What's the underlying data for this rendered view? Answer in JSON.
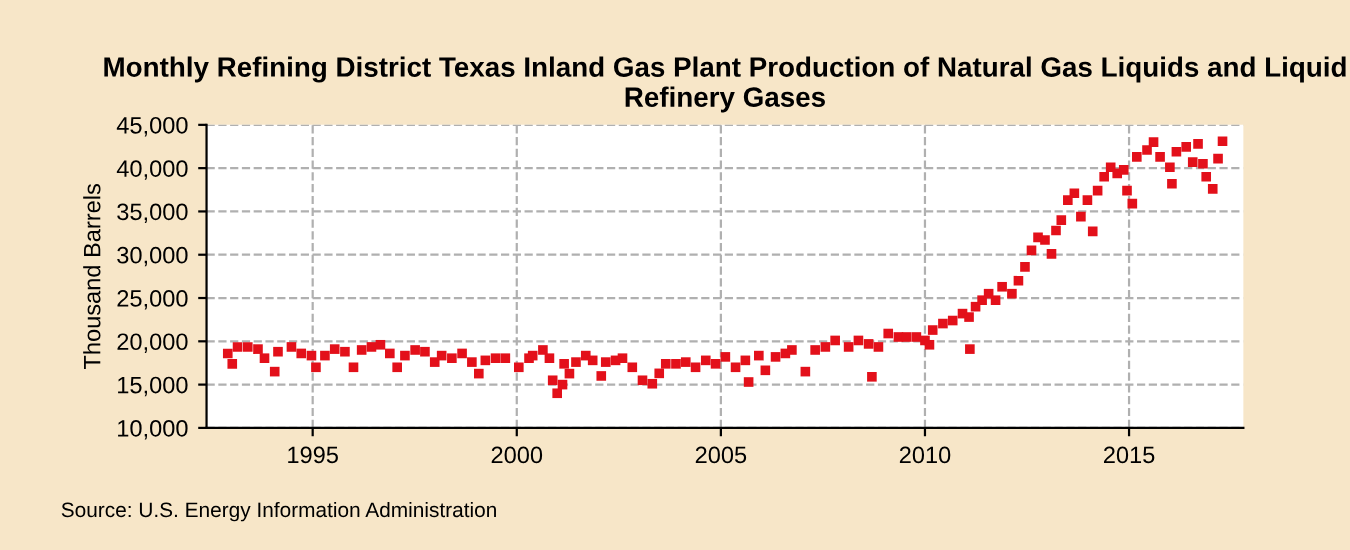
{
  "chart_data": {
    "type": "scatter",
    "title": "Monthly Refining District Texas Inland Gas Plant Production of Natural Gas Liquids and Liquid Refinery Gases",
    "ylabel": "Thousand Barrels",
    "annotations": [
      "Source: U.S. Energy Information Administration"
    ],
    "x": [
      1992.92,
      1993.03,
      1993.16,
      1993.41,
      1993.66,
      1993.82,
      1994.07,
      1994.15,
      1994.48,
      1994.72,
      1994.97,
      1995.08,
      1995.3,
      1995.54,
      1995.79,
      1996.0,
      1996.2,
      1996.44,
      1996.66,
      1996.89,
      1997.07,
      1997.26,
      1997.51,
      1997.75,
      1997.99,
      1998.16,
      1998.41,
      1998.66,
      1998.9,
      1999.07,
      1999.23,
      1999.48,
      1999.72,
      2000.05,
      2000.3,
      2000.39,
      2000.64,
      2000.8,
      2000.88,
      2000.99,
      2001.12,
      2001.16,
      2001.29,
      2001.45,
      2001.69,
      2001.86,
      2002.07,
      2002.18,
      2002.42,
      2002.59,
      2002.83,
      2003.08,
      2003.32,
      2003.49,
      2003.65,
      2003.9,
      2004.14,
      2004.38,
      2004.63,
      2004.87,
      2005.11,
      2005.36,
      2005.6,
      2005.68,
      2005.93,
      2006.09,
      2006.34,
      2006.58,
      2006.74,
      2007.07,
      2007.31,
      2007.56,
      2007.8,
      2008.13,
      2008.37,
      2008.62,
      2008.7,
      2008.86,
      2009.1,
      2009.35,
      2009.55,
      2009.79,
      2010.0,
      2010.11,
      2010.19,
      2010.44,
      2010.68,
      2010.92,
      2011.08,
      2011.1,
      2011.24,
      2011.4,
      2011.56,
      2011.73,
      2011.89,
      2012.13,
      2012.29,
      2012.45,
      2012.61,
      2012.77,
      2012.94,
      2013.1,
      2013.21,
      2013.34,
      2013.5,
      2013.66,
      2013.82,
      2013.98,
      2014.11,
      2014.23,
      2014.39,
      2014.55,
      2014.71,
      2014.87,
      2014.95,
      2015.08,
      2015.19,
      2015.44,
      2015.6,
      2015.76,
      2016.0,
      2016.05,
      2016.16,
      2016.4,
      2016.56,
      2016.69,
      2016.81,
      2016.89,
      2017.05,
      2017.18,
      2017.29
    ],
    "series": [
      {
        "color": "#e3101a",
        "values": [
          18600,
          17400,
          19350,
          19350,
          19100,
          18050,
          16500,
          18800,
          19350,
          18600,
          18350,
          17000,
          18350,
          19100,
          18800,
          17000,
          19000,
          19350,
          19600,
          18600,
          17000,
          18350,
          19000,
          18800,
          17600,
          18350,
          18050,
          18600,
          17600,
          16270,
          17800,
          18050,
          18050,
          17000,
          18050,
          18350,
          19000,
          18050,
          15500,
          14000,
          15000,
          17400,
          16270,
          17600,
          18350,
          17800,
          16000,
          17600,
          17800,
          18050,
          17000,
          15500,
          15100,
          16300,
          17400,
          17400,
          17600,
          17000,
          17800,
          17400,
          18200,
          17000,
          17800,
          15300,
          18350,
          16650,
          18200,
          18600,
          19000,
          16500,
          19000,
          19350,
          20100,
          19350,
          20100,
          19700,
          15900,
          19350,
          20900,
          20500,
          20500,
          20500,
          20100,
          19600,
          21300,
          22050,
          22400,
          23200,
          22800,
          19100,
          24000,
          24750,
          25500,
          24750,
          26300,
          25500,
          27000,
          28600,
          30500,
          32000,
          31700,
          30100,
          32800,
          34000,
          36300,
          37100,
          34400,
          36300,
          32700,
          37400,
          39000,
          40100,
          39400,
          39800,
          37400,
          35900,
          41300,
          42100,
          43000,
          41300,
          40100,
          38200,
          41900,
          42450,
          40700,
          42800,
          40500,
          39000,
          37600,
          41100,
          43100
        ]
      }
    ],
    "marker": "square",
    "xlim": [
      1992.4,
      2017.8
    ],
    "xticks": [
      1995,
      2000,
      2005,
      2010,
      2015
    ],
    "ylim": [
      10000,
      45000
    ],
    "yticks": [
      {
        "value": 10000,
        "label": "10,000"
      },
      {
        "value": 15000,
        "label": "15,000"
      },
      {
        "value": 20000,
        "label": "20,000"
      },
      {
        "value": 25000,
        "label": "25,000"
      },
      {
        "value": 30000,
        "label": "30,000"
      },
      {
        "value": 35000,
        "label": "35,000"
      },
      {
        "value": 40000,
        "label": "40,000"
      },
      {
        "value": 45000,
        "label": "45,000"
      }
    ],
    "grid": true
  }
}
